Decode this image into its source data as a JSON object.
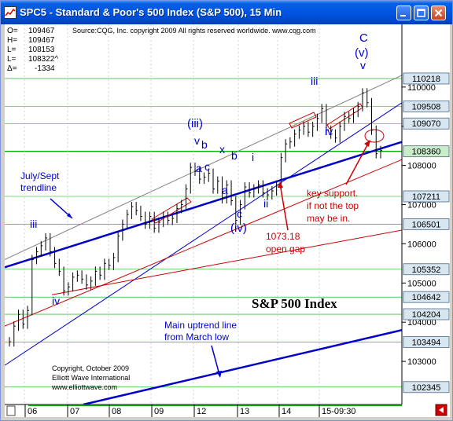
{
  "window": {
    "title": "SPC5 - Standard & Poor's 500 Index (S&P 500), 15 Min"
  },
  "colors": {
    "titlebar": "#0055e5",
    "wave_label": "#0000cc",
    "support_note": "#cc0000",
    "bar": "#000000",
    "price_box": "#d8e6f0",
    "price_box_highlight": "#c9ecc9",
    "upper_trendline": "#808080",
    "july_sept_trendline": "#0000cc",
    "main_uptrend": "#0000cc",
    "support_line": "#cc0000",
    "horizontal_ref_line": "#00aa00"
  },
  "header": {
    "lines": [
      {
        "key": "O=",
        "value": "109467"
      },
      {
        "key": "H=",
        "value": "109467"
      },
      {
        "key": "L=",
        "value": "108153"
      },
      {
        "key": "L=",
        "value": "108322^"
      },
      {
        "key": "Δ=",
        "value": "-1334"
      }
    ],
    "source": "Source:CQG, Inc. copyright 2009 All rights reserved worldwide. www.cqg.com"
  },
  "chart_data": {
    "type": "line",
    "style": "ohlc_bars",
    "title": "S&P 500 Index",
    "xlabel": "",
    "ylabel": "",
    "ylim": [
      101900,
      111600
    ],
    "grid": true,
    "x_ticks": [
      "06",
      "07",
      "08",
      "09",
      "12",
      "13",
      "14",
      "15-09:30"
    ],
    "y_ticks": [
      103000,
      104000,
      105000,
      106000,
      107000,
      108000,
      109000,
      110000
    ],
    "y_ticks_labels": [
      "103000",
      "104000",
      "105000",
      "106000",
      "107000",
      "108000",
      "109000",
      "110000"
    ],
    "highlighted_levels": [
      {
        "label": "110218",
        "value": 110218,
        "current": false
      },
      {
        "label": "109508",
        "value": 109508,
        "current": false
      },
      {
        "label": "109070",
        "value": 109070,
        "current": false
      },
      {
        "label": "108360",
        "value": 108360,
        "current": true
      },
      {
        "label": "107211",
        "value": 107211,
        "current": false
      },
      {
        "label": "106501",
        "value": 106501,
        "current": false
      },
      {
        "label": "105352",
        "value": 105352,
        "current": false
      },
      {
        "label": "104642",
        "value": 104642,
        "current": false
      },
      {
        "label": "104204",
        "value": 104204,
        "current": false
      },
      {
        "label": "103494",
        "value": 103494,
        "current": false
      },
      {
        "label": "102345",
        "value": 102345,
        "current": false
      }
    ],
    "series": [
      {
        "values": [
          103500,
          103900,
          104200,
          103950,
          104300,
          105600,
          105800,
          105950,
          106150,
          105800,
          105500,
          105300,
          104800,
          104900,
          105150,
          105200,
          105100,
          104950,
          105050,
          105300,
          105200,
          105500,
          105450,
          105650,
          106200,
          106500,
          106750,
          106950,
          106850,
          106700,
          106500,
          106700,
          106400,
          106550,
          106700,
          106600,
          106650,
          106900,
          107000,
          107400,
          107950,
          107850,
          107650,
          107700,
          107800,
          107400,
          107600,
          107150,
          107500,
          107100,
          106600,
          107000,
          107450,
          107300,
          107400,
          107500,
          107300,
          107250,
          107350,
          107500,
          108200,
          108550,
          108600,
          108800,
          108900,
          109000,
          108850,
          109000,
          109200,
          109450,
          108900,
          108800,
          108700,
          109000,
          109250,
          109200,
          109350,
          109500,
          109850,
          109600,
          108900,
          108300,
          108380
        ]
      }
    ]
  },
  "annotations": {
    "waves": {
      "iii_left": "iii",
      "iv_left": "iv",
      "iii_paren": "(iii)",
      "v_top": "v",
      "b_top": "b",
      "a_mid": "a",
      "c_mid": "c",
      "x_label": "x",
      "b_right": "b",
      "a_low": "a",
      "c_low": "c",
      "iv_paren": "(iv)",
      "i_label": "i",
      "ii_label": "ii",
      "iii_right": "iii",
      "iv_right": "iv",
      "C_label": "C",
      "v_paren": "(v)",
      "v_final": "v"
    },
    "july_sept_trendline_label": [
      "July/Sept",
      "trendline"
    ],
    "open_gap_label": [
      "1073.18",
      "open gap"
    ],
    "key_support_label": [
      "key support.",
      "if not the top",
      "may be in."
    ],
    "main_uptrend_label": [
      "Main uptrend line",
      "from March low"
    ],
    "index_title": "S&P 500 Index",
    "copyright": [
      "Copyright, October 2009",
      "Elliott Wave International",
      "www.elliottwave.com"
    ]
  }
}
